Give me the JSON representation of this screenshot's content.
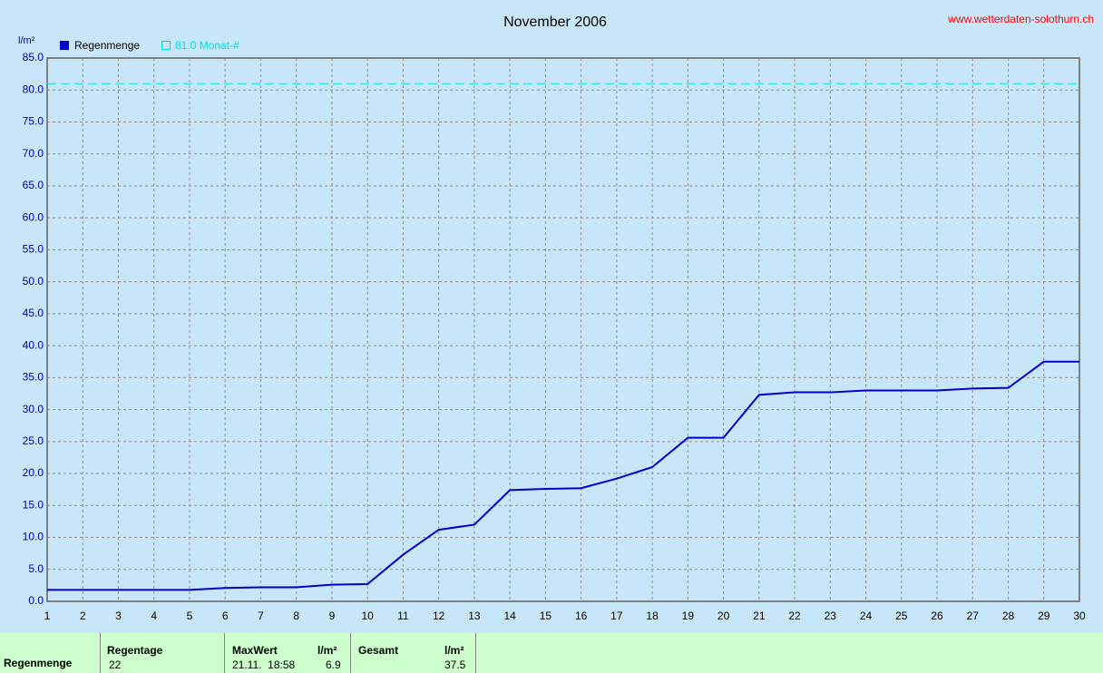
{
  "chart_data": {
    "type": "line",
    "title": "November 2006",
    "y_label": "l/m²",
    "source": "www.wetterdaten-solothurn.ch",
    "x": [
      1,
      2,
      3,
      4,
      5,
      6,
      7,
      8,
      9,
      10,
      11,
      12,
      13,
      14,
      15,
      16,
      17,
      18,
      19,
      20,
      21,
      22,
      23,
      24,
      25,
      26,
      27,
      28,
      29,
      30
    ],
    "series": [
      {
        "name": "Regenmenge",
        "color": "#0000cc",
        "values": [
          1.8,
          1.8,
          1.8,
          1.8,
          1.8,
          2.1,
          2.2,
          2.2,
          2.6,
          2.7,
          7.3,
          11.2,
          12.0,
          17.4,
          17.6,
          17.7,
          19.2,
          21.0,
          25.6,
          25.6,
          32.3,
          32.7,
          32.7,
          33.0,
          33.0,
          33.0,
          33.3,
          33.4,
          37.5,
          37.5
        ]
      }
    ],
    "reference": {
      "label": "81.0 Monat-#",
      "value": 81,
      "color": "#00e0e0"
    },
    "xlim": [
      1,
      30
    ],
    "ylim": [
      0,
      85
    ],
    "xticks": [
      1,
      2,
      3,
      4,
      5,
      6,
      7,
      8,
      9,
      10,
      11,
      12,
      13,
      14,
      15,
      16,
      17,
      18,
      19,
      20,
      21,
      22,
      23,
      24,
      25,
      26,
      27,
      28,
      29,
      30
    ],
    "yticks": [
      {
        "value": 0,
        "label": "0.0"
      },
      {
        "value": 5,
        "label": "5.0"
      },
      {
        "value": 10,
        "label": "10.0"
      },
      {
        "value": 15,
        "label": "15.0"
      },
      {
        "value": 20,
        "label": "20.0"
      },
      {
        "value": 25,
        "label": "25.0"
      },
      {
        "value": 30,
        "label": "30.0"
      },
      {
        "value": 35,
        "label": "35.0"
      },
      {
        "value": 40,
        "label": "40.0"
      },
      {
        "value": 45,
        "label": "45.0"
      },
      {
        "value": 50,
        "label": "50.0"
      },
      {
        "value": 55,
        "label": "55.0"
      },
      {
        "value": 60,
        "label": "60.0"
      },
      {
        "value": 65,
        "label": "65.0"
      },
      {
        "value": 70,
        "label": "70.0"
      },
      {
        "value": 75,
        "label": "75.0"
      },
      {
        "value": 80,
        "label": "80.0"
      },
      {
        "value": 85,
        "label": "85.0"
      }
    ],
    "grid": true
  },
  "table": {
    "row_label": "Regenmenge",
    "headers": [
      "Regentage",
      "MaxWert",
      "l/m²",
      "Gesamt",
      "l/m²"
    ],
    "values": [
      "22",
      "21.11.  18:58",
      "6.9",
      "",
      "37.5"
    ]
  }
}
